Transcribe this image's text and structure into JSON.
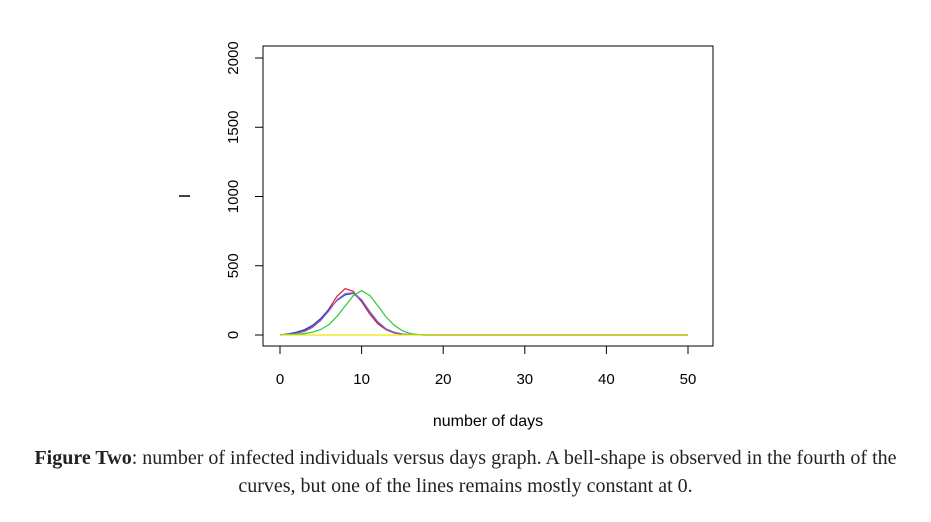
{
  "chart_data": {
    "type": "line",
    "title": "",
    "xlabel": "number of days",
    "ylabel": "I",
    "xlim": [
      0,
      50
    ],
    "ylim": [
      0,
      2000
    ],
    "x_ticks": [
      0,
      10,
      20,
      30,
      40,
      50
    ],
    "y_ticks": [
      0,
      500,
      1000,
      1500,
      2000
    ],
    "grid": false,
    "series": [
      {
        "color": "#d62728",
        "x": [
          0,
          1,
          2,
          3,
          4,
          5,
          6,
          7,
          8,
          9,
          10,
          11,
          12,
          13,
          14,
          15,
          16,
          17,
          18,
          20,
          25,
          30,
          35,
          40,
          45,
          50
        ],
        "y": [
          0,
          6,
          15,
          30,
          60,
          110,
          190,
          280,
          335,
          315,
          240,
          150,
          80,
          38,
          15,
          5,
          2,
          1,
          0,
          0,
          0,
          0,
          0,
          0,
          0,
          0
        ]
      },
      {
        "color": "#1f3fd6",
        "x": [
          0,
          1,
          2,
          3,
          4,
          5,
          6,
          7,
          8,
          9,
          10,
          11,
          12,
          13,
          14,
          15,
          16,
          17,
          18,
          20,
          25,
          30,
          35,
          40,
          45,
          50
        ],
        "y": [
          0,
          8,
          20,
          38,
          70,
          120,
          185,
          250,
          290,
          300,
          250,
          165,
          90,
          42,
          18,
          6,
          2,
          1,
          0,
          0,
          0,
          0,
          0,
          0,
          0,
          0
        ]
      },
      {
        "color": "#9467bd",
        "x": [
          0,
          1,
          2,
          3,
          4,
          5,
          6,
          7,
          8,
          9,
          10,
          11,
          12,
          13,
          14,
          15,
          16,
          17,
          18,
          20,
          25,
          30,
          35,
          40,
          45,
          50
        ],
        "y": [
          0,
          5,
          12,
          25,
          55,
          105,
          175,
          255,
          300,
          305,
          255,
          170,
          95,
          45,
          20,
          7,
          2,
          1,
          0,
          0,
          0,
          0,
          0,
          0,
          0,
          0
        ]
      },
      {
        "color": "#2ecc2e",
        "x": [
          0,
          1,
          2,
          3,
          4,
          5,
          6,
          7,
          8,
          9,
          10,
          11,
          12,
          13,
          14,
          15,
          16,
          17,
          18,
          20,
          25,
          30,
          35,
          40,
          45,
          50
        ],
        "y": [
          0,
          2,
          5,
          10,
          20,
          40,
          75,
          135,
          210,
          285,
          320,
          285,
          210,
          130,
          70,
          30,
          10,
          3,
          1,
          0,
          0,
          0,
          0,
          0,
          0,
          0
        ]
      },
      {
        "color": "#e6e600",
        "x": [
          0,
          10,
          20,
          30,
          40,
          50
        ],
        "y": [
          0,
          0,
          0,
          0,
          0,
          0
        ]
      }
    ]
  },
  "caption": {
    "bold": "Figure Two",
    "text": ": number of infected individuals versus days graph. A bell-shape is observed in the fourth of the curves, but one of the lines remains mostly constant at 0."
  }
}
